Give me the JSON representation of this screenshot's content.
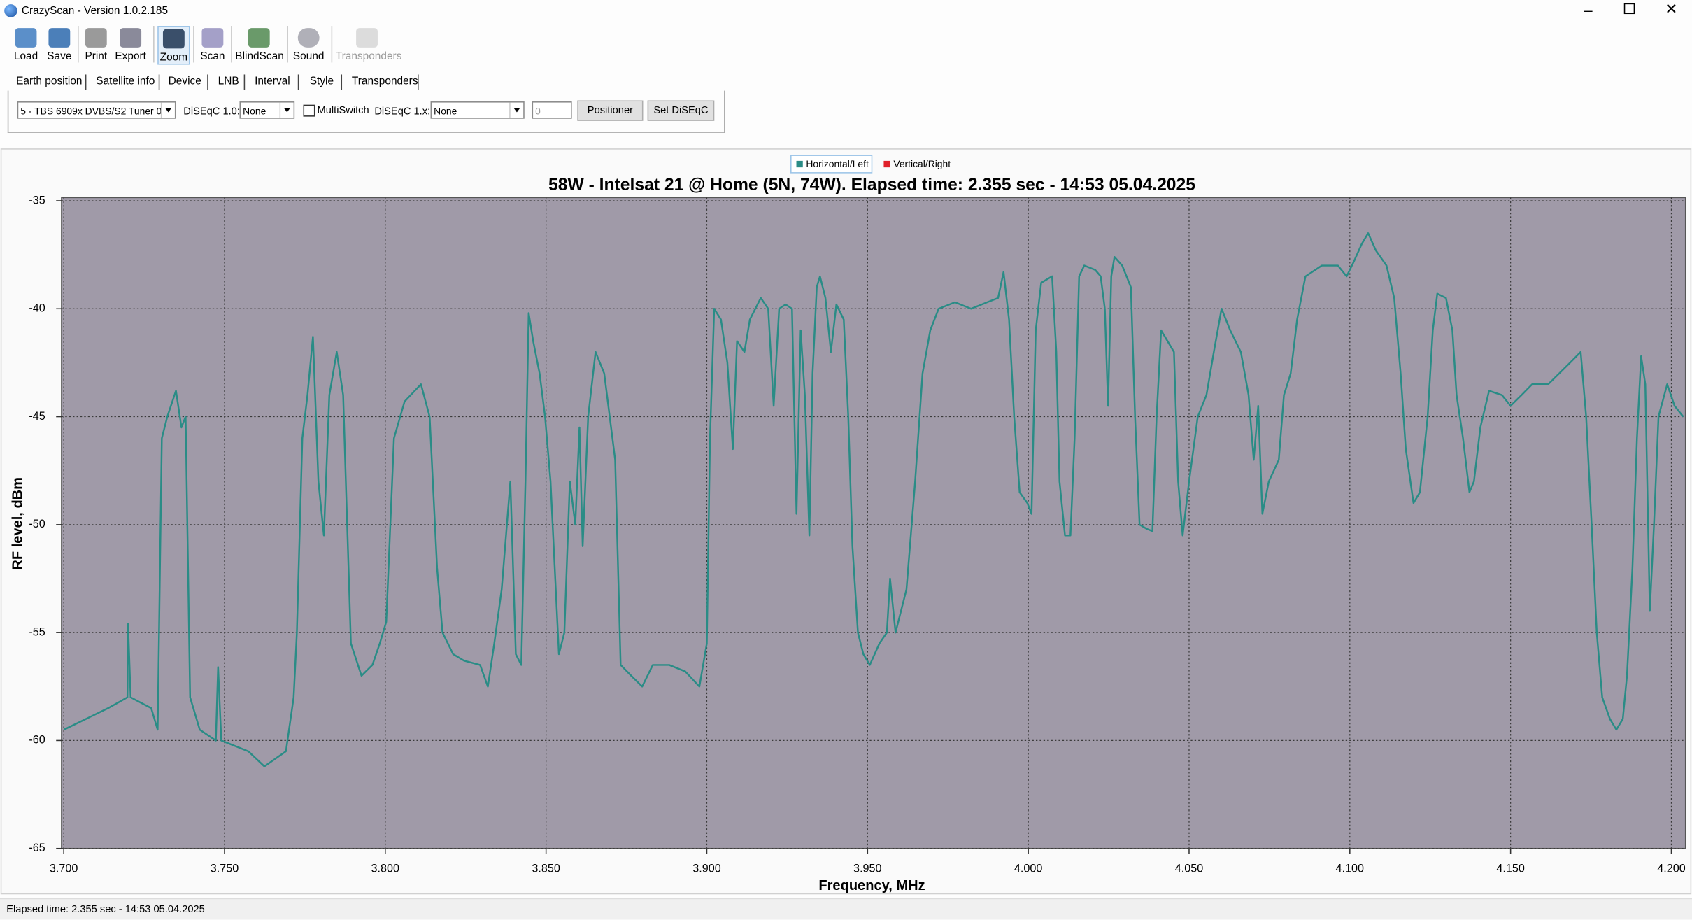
{
  "window": {
    "title": "CrazyScan - Version 1.0.2.185"
  },
  "toolbar": [
    "Load",
    "Save",
    "Print",
    "Export",
    "Zoom",
    "Scan",
    "BlindScan",
    "Sound",
    "Transponders"
  ],
  "tabs": [
    "Earth position",
    "Satellite info",
    "Device",
    "LNB",
    "Interval",
    "Style",
    "Transponders"
  ],
  "device_panel": {
    "tuner": "5 - TBS 6909x DVBS/S2 Tuner 0",
    "diseqc10_label": "DiSEqC 1.0:",
    "diseqc10_value": "None",
    "multiswitch": "MultiSwitch",
    "diseqc1x_label": "DiSEqC 1.x:",
    "diseqc1x_value": "None",
    "spin_value": 0,
    "positioner": "Positioner",
    "set_diseqc": "Set DiSEqC"
  },
  "chart_data": {
    "type": "line",
    "title": "58W - Intelsat 21 @ Home (5N, 74W). Elapsed time: 2.355 sec - 14:53 05.04.2025",
    "x_label": "Frequency, MHz",
    "y_label": "RF level, dBm",
    "xlim": [
      3.6993,
      4.2044
    ],
    "ylim": [
      -65,
      -35
    ],
    "xticks": [
      {
        "value": 3.7,
        "label": "3.700"
      },
      {
        "value": 3.75,
        "label": "3.750"
      },
      {
        "value": 3.8,
        "label": "3.800"
      },
      {
        "value": 3.85,
        "label": "3.850"
      },
      {
        "value": 3.9,
        "label": "3.900"
      },
      {
        "value": 3.95,
        "label": "3.950"
      },
      {
        "value": 4.0,
        "label": "4.000"
      },
      {
        "value": 4.05,
        "label": "4.050"
      },
      {
        "value": 4.1,
        "label": "4.100"
      },
      {
        "value": 4.15,
        "label": "4.150"
      },
      {
        "value": 4.2,
        "label": "4.200"
      }
    ],
    "yticks": [
      -65,
      -60,
      -55,
      -50,
      -45,
      -40,
      -35
    ],
    "grid": true,
    "plot_background": "#a09aa8",
    "legend": "top",
    "x": [
      3.7,
      3.7138,
      3.7198,
      3.72,
      3.7208,
      3.7272,
      3.7292,
      3.7305,
      3.7322,
      3.7349,
      3.7366,
      3.7379,
      3.7393,
      3.7423,
      3.7473,
      3.748,
      3.749,
      3.7574,
      3.7624,
      3.7691,
      3.7715,
      3.7725,
      3.7742,
      3.7758,
      3.7775,
      3.7792,
      3.7809,
      3.7826,
      3.7849,
      3.7869,
      3.7893,
      3.7926,
      3.796,
      3.7983,
      3.8003,
      3.8027,
      3.806,
      3.8111,
      3.8138,
      3.8161,
      3.8178,
      3.8211,
      3.8245,
      3.8295,
      3.8319,
      3.8339,
      3.8362,
      3.8389,
      3.8406,
      3.8423,
      3.8436,
      3.8446,
      3.846,
      3.848,
      3.8497,
      3.8514,
      3.854,
      3.8557,
      3.8574,
      3.8591,
      3.8604,
      3.8614,
      3.8631,
      3.8654,
      3.8681,
      3.8698,
      3.8715,
      3.8732,
      3.8765,
      3.8799,
      3.8832,
      3.8883,
      3.8933,
      3.8977,
      3.9,
      3.901,
      3.9023,
      3.9044,
      3.9064,
      3.9081,
      3.9094,
      3.9117,
      3.9134,
      3.9168,
      3.9191,
      3.9208,
      3.9225,
      3.9245,
      3.9265,
      3.9279,
      3.9292,
      3.9305,
      3.9319,
      3.9329,
      3.9342,
      3.9352,
      3.9369,
      3.9386,
      3.9403,
      3.9426,
      3.944,
      3.9453,
      3.947,
      3.9487,
      3.9507,
      3.9537,
      3.956,
      3.957,
      3.9587,
      3.9621,
      3.9648,
      3.9671,
      3.9695,
      3.9721,
      3.9772,
      3.9822,
      3.9872,
      3.9906,
      3.9923,
      3.994,
      3.9956,
      3.9973,
      3.9997,
      4.001,
      4.0023,
      4.004,
      4.0074,
      4.0087,
      4.0097,
      4.0114,
      4.0131,
      4.0144,
      4.0158,
      4.0174,
      4.0208,
      4.0225,
      4.0238,
      4.0248,
      4.0258,
      4.0268,
      4.0292,
      4.0319,
      4.0332,
      4.0346,
      4.0369,
      4.0386,
      4.0399,
      4.0413,
      4.0433,
      4.0453,
      4.0466,
      4.048,
      4.05,
      4.0527,
      4.0554,
      4.0577,
      4.0601,
      4.0628,
      4.0661,
      4.0685,
      4.0701,
      4.0715,
      4.0728,
      4.0748,
      4.0779,
      4.0795,
      4.0816,
      4.0836,
      4.0862,
      4.0913,
      4.0963,
      4.099,
      4.1013,
      4.1037,
      4.1057,
      4.1081,
      4.1114,
      4.1138,
      4.1158,
      4.1174,
      4.1198,
      4.1218,
      4.1242,
      4.1258,
      4.1272,
      4.1299,
      4.1319,
      4.1332,
      4.1352,
      4.1372,
      4.1386,
      4.1406,
      4.1433,
      4.1473,
      4.15,
      4.1534,
      4.1567,
      4.1617,
      4.1651,
      4.1685,
      4.1718,
      4.1735,
      4.1752,
      4.1768,
      4.1785,
      4.1809,
      4.1829,
      4.1849,
      4.1862,
      4.1879,
      4.1893,
      4.1906,
      4.1919,
      4.1933,
      4.1946,
      4.196,
      4.1987,
      4.201,
      4.2037
    ],
    "series": [
      {
        "name": "Horizontal/Left",
        "color": "#2a8c86",
        "values": [
          -59.5,
          -58.5,
          -58,
          -54.6,
          -58,
          -58.5,
          -59.5,
          -46,
          -45,
          -43.8,
          -45.5,
          -45,
          -58,
          -59.5,
          -60,
          -56.6,
          -60,
          -60.5,
          -61.2,
          -60.5,
          -58,
          -55,
          -46,
          -44,
          -41.3,
          -48,
          -50.5,
          -44,
          -42,
          -44,
          -55.5,
          -57,
          -56.5,
          -55.5,
          -54.5,
          -46,
          -44.3,
          -43.5,
          -45,
          -52,
          -55,
          -56,
          -56.3,
          -56.5,
          -57.5,
          -55.5,
          -53,
          -48,
          -56,
          -56.5,
          -48,
          -40.2,
          -41.5,
          -43,
          -45,
          -48,
          -56,
          -55,
          -48,
          -50,
          -45.5,
          -51,
          -45,
          -42,
          -43,
          -45,
          -47,
          -56.5,
          -57,
          -57.5,
          -56.5,
          -56.5,
          -56.8,
          -57.5,
          -55.5,
          -46,
          -40,
          -40.5,
          -42.5,
          -46.5,
          -41.5,
          -42,
          -40.5,
          -39.5,
          -40,
          -44.5,
          -40,
          -39.8,
          -40,
          -49.5,
          -41,
          -44,
          -50.5,
          -43,
          -39,
          -38.5,
          -39.5,
          -42,
          -39.8,
          -40.5,
          -45,
          -51,
          -55,
          -56,
          -56.5,
          -55.5,
          -55,
          -52.5,
          -55,
          -53,
          -48,
          -43,
          -41,
          -40,
          -39.7,
          -40,
          -39.7,
          -39.5,
          -38.3,
          -40.5,
          -45,
          -48.5,
          -49,
          -49.5,
          -41,
          -38.8,
          -38.5,
          -42,
          -48,
          -50.5,
          -50.5,
          -46,
          -38.5,
          -38,
          -38.2,
          -38.5,
          -40,
          -44.5,
          -38.5,
          -37.6,
          -38,
          -39,
          -45,
          -50,
          -50.2,
          -50.3,
          -45,
          -41,
          -41.5,
          -42,
          -48,
          -50.5,
          -48,
          -45,
          -44,
          -42,
          -40,
          -41,
          -42,
          -44,
          -47,
          -44.5,
          -49.5,
          -48,
          -47,
          -44,
          -43,
          -40.5,
          -38.5,
          -38,
          -38,
          -38.5,
          -37.8,
          -37,
          -36.5,
          -37.3,
          -38,
          -39.5,
          -43,
          -46.5,
          -49,
          -48.5,
          -45,
          -41,
          -39.3,
          -39.5,
          -41,
          -44,
          -46,
          -48.5,
          -48,
          -45.5,
          -43.8,
          -44,
          -44.5,
          -44,
          -43.5,
          -43.5,
          -43,
          -42.5,
          -42,
          -45,
          -50,
          -55,
          -58,
          -59,
          -59.5,
          -59,
          -57,
          -52,
          -46,
          -42.2,
          -43.5,
          -54,
          -50,
          -45,
          -43.5,
          -44.5,
          -45
        ]
      },
      {
        "name": "Vertical/Right",
        "color": "#e0202a"
      }
    ]
  },
  "status_bar": "Elapsed time: 2.355 sec - 14:53 05.04.2025"
}
